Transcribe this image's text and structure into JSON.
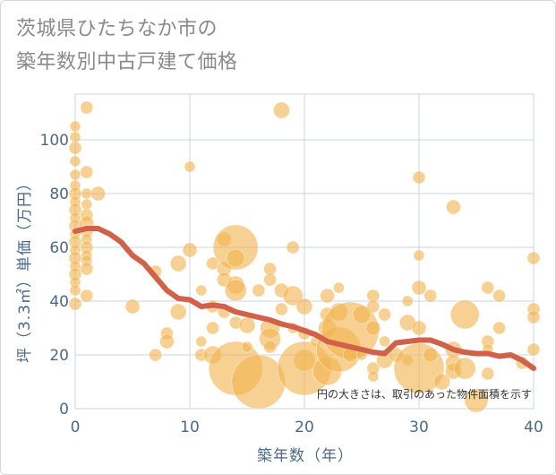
{
  "title_line1": "茨城県ひたちなか市の",
  "title_line2": "築年数別中古戸建て価格",
  "note": "円の大きさは、取引のあった物件面積を示す",
  "chart_data": {
    "type": "scatter",
    "xlabel": "築年数（年）",
    "ylabel": "坪（3.3㎡）単価（万円）",
    "xlim": [
      0,
      40
    ],
    "ylim": [
      0,
      117
    ],
    "xticks": [
      0,
      10,
      20,
      30,
      40
    ],
    "yticks": [
      0,
      20,
      40,
      60,
      80,
      100
    ],
    "grid": true,
    "colors": {
      "bubble": "#f2b24c",
      "trend": "#d2614a",
      "grid": "#c9d4e0"
    },
    "points": [
      [
        0,
        105,
        6
      ],
      [
        0,
        101,
        6
      ],
      [
        0,
        97,
        7
      ],
      [
        0,
        92,
        6
      ],
      [
        0,
        87,
        6
      ],
      [
        0,
        83,
        6
      ],
      [
        0,
        80,
        7
      ],
      [
        0,
        77,
        6
      ],
      [
        0,
        74,
        7
      ],
      [
        0,
        71,
        6
      ],
      [
        0,
        68,
        7
      ],
      [
        0,
        65,
        6
      ],
      [
        0,
        62,
        7
      ],
      [
        0,
        59,
        6
      ],
      [
        0,
        56,
        7
      ],
      [
        0,
        53,
        6
      ],
      [
        0,
        50,
        7
      ],
      [
        0,
        47,
        6
      ],
      [
        0,
        44,
        6
      ],
      [
        0,
        39,
        7
      ],
      [
        1,
        112,
        7
      ],
      [
        1,
        88,
        7
      ],
      [
        1,
        80,
        6
      ],
      [
        1,
        76,
        6
      ],
      [
        1,
        72,
        7
      ],
      [
        1,
        69,
        8
      ],
      [
        1,
        66,
        7
      ],
      [
        1,
        63,
        6
      ],
      [
        1,
        60,
        7
      ],
      [
        1,
        57,
        6
      ],
      [
        1,
        55,
        6
      ],
      [
        1,
        52,
        7
      ],
      [
        1,
        42,
        7
      ],
      [
        2,
        80,
        8
      ],
      [
        5,
        38,
        8
      ],
      [
        7,
        51,
        7
      ],
      [
        7,
        20,
        7
      ],
      [
        8,
        28,
        7
      ],
      [
        8,
        25,
        8
      ],
      [
        9,
        54,
        9
      ],
      [
        9,
        36,
        9
      ],
      [
        10,
        90,
        6
      ],
      [
        10,
        59,
        8
      ],
      [
        11,
        44,
        6
      ],
      [
        11,
        25,
        6
      ],
      [
        11,
        20,
        7
      ],
      [
        12,
        54,
        7
      ],
      [
        12,
        38,
        7
      ],
      [
        12,
        30,
        7
      ],
      [
        12,
        20,
        10
      ],
      [
        13,
        63,
        8
      ],
      [
        13,
        52,
        8
      ],
      [
        13,
        48,
        8
      ],
      [
        13,
        36,
        7
      ],
      [
        14,
        60,
        25
      ],
      [
        14,
        56,
        10
      ],
      [
        14,
        46,
        10
      ],
      [
        14,
        44,
        12
      ],
      [
        14,
        32,
        7
      ],
      [
        14,
        15,
        30
      ],
      [
        15,
        31,
        9
      ],
      [
        15,
        23,
        6
      ],
      [
        16,
        44,
        7
      ],
      [
        16,
        10,
        30
      ],
      [
        17,
        52,
        7
      ],
      [
        17,
        48,
        7
      ],
      [
        17,
        30,
        11
      ],
      [
        17,
        26,
        12
      ],
      [
        17,
        23,
        7
      ],
      [
        18,
        111,
        9
      ],
      [
        18,
        44,
        8
      ],
      [
        18,
        37,
        7
      ],
      [
        19,
        60,
        7
      ],
      [
        19,
        42,
        11
      ],
      [
        19,
        30,
        6
      ],
      [
        20,
        38,
        9
      ],
      [
        20,
        28,
        7
      ],
      [
        20,
        18,
        12
      ],
      [
        20,
        15,
        30
      ],
      [
        21,
        25,
        6
      ],
      [
        22,
        42,
        8
      ],
      [
        22,
        35,
        8
      ],
      [
        22,
        30,
        10
      ],
      [
        22,
        14,
        16
      ],
      [
        23,
        36,
        10
      ],
      [
        23,
        45,
        6
      ],
      [
        23,
        22,
        25
      ],
      [
        24,
        29,
        32
      ],
      [
        24,
        20,
        8
      ],
      [
        25,
        35,
        10
      ],
      [
        25,
        20,
        6
      ],
      [
        26,
        42,
        7
      ],
      [
        26,
        38,
        7
      ],
      [
        26,
        30,
        8
      ],
      [
        26,
        15,
        7
      ],
      [
        26,
        12,
        6
      ],
      [
        27,
        35,
        7
      ],
      [
        27,
        25,
        6
      ],
      [
        27,
        18,
        9
      ],
      [
        28,
        20,
        8
      ],
      [
        29,
        40,
        6
      ],
      [
        29,
        32,
        9
      ],
      [
        29,
        18,
        6
      ],
      [
        30,
        86,
        7
      ],
      [
        30,
        57,
        6
      ],
      [
        30,
        45,
        8
      ],
      [
        30,
        30,
        8
      ],
      [
        30,
        15,
        28
      ],
      [
        31,
        42,
        7
      ],
      [
        31,
        20,
        8
      ],
      [
        32,
        10,
        9
      ],
      [
        33,
        75,
        8
      ],
      [
        33,
        22,
        9
      ],
      [
        33,
        17,
        9
      ],
      [
        33,
        14,
        9
      ],
      [
        34,
        35,
        16
      ],
      [
        34,
        15,
        12
      ],
      [
        35,
        3,
        13
      ],
      [
        36,
        45,
        7
      ],
      [
        36,
        25,
        7
      ],
      [
        36,
        22,
        6
      ],
      [
        36,
        13,
        7
      ],
      [
        37,
        42,
        7
      ],
      [
        37,
        30,
        7
      ],
      [
        39,
        17,
        7
      ],
      [
        40,
        56,
        7
      ],
      [
        40,
        37,
        7
      ],
      [
        40,
        34,
        7
      ],
      [
        40,
        22,
        7
      ]
    ],
    "trend": [
      [
        0,
        66
      ],
      [
        1,
        67
      ],
      [
        2,
        67
      ],
      [
        3,
        65
      ],
      [
        4,
        62
      ],
      [
        5,
        57
      ],
      [
        6,
        54
      ],
      [
        7,
        49
      ],
      [
        8,
        44
      ],
      [
        9,
        41
      ],
      [
        10,
        40.5
      ],
      [
        11,
        38
      ],
      [
        12,
        38.5
      ],
      [
        13,
        38
      ],
      [
        14,
        36
      ],
      [
        15,
        35
      ],
      [
        16,
        34
      ],
      [
        17,
        33
      ],
      [
        18,
        31.5
      ],
      [
        19,
        30.5
      ],
      [
        20,
        29
      ],
      [
        21,
        27.5
      ],
      [
        22,
        25
      ],
      [
        23,
        24
      ],
      [
        24,
        23
      ],
      [
        25,
        22
      ],
      [
        26,
        21
      ],
      [
        27,
        20.5
      ],
      [
        28,
        24.5
      ],
      [
        29,
        25
      ],
      [
        30,
        25.5
      ],
      [
        31,
        25.5
      ],
      [
        32,
        24
      ],
      [
        33,
        22
      ],
      [
        34,
        21
      ],
      [
        35,
        20.5
      ],
      [
        36,
        20.5
      ],
      [
        37,
        19.5
      ],
      [
        38,
        20
      ],
      [
        39,
        18
      ],
      [
        40,
        15
      ]
    ]
  }
}
